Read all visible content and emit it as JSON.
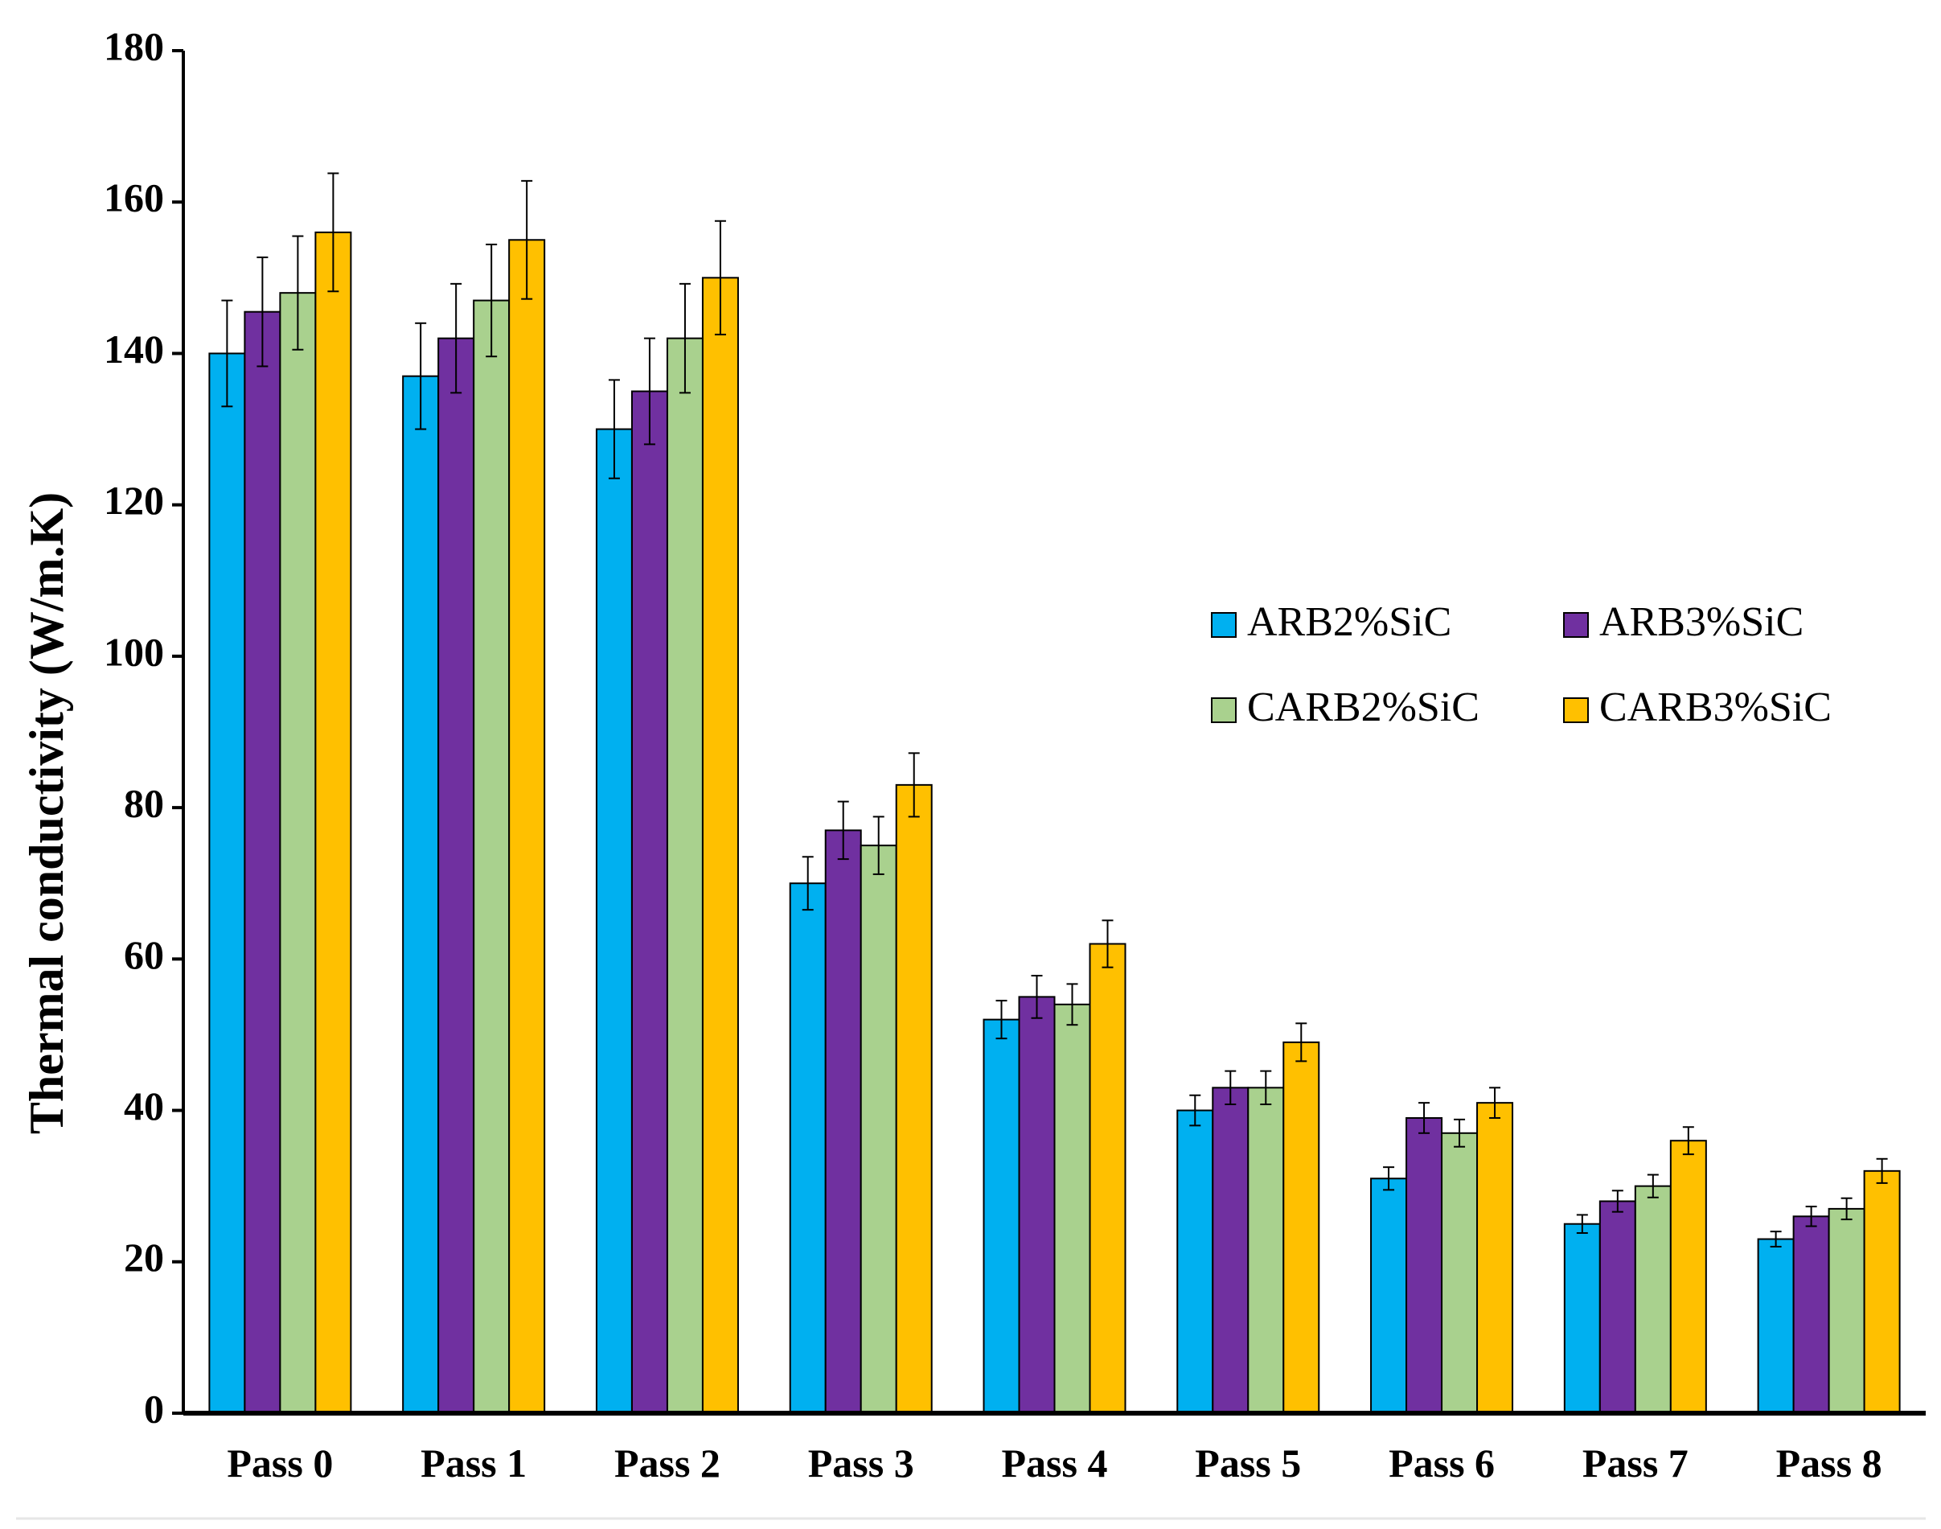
{
  "chart_data": {
    "type": "bar",
    "title": "",
    "xlabel": "",
    "ylabel": "Thermal conductivity (W/m.K)",
    "ylim": [
      0,
      180
    ],
    "yticks": [
      0,
      20,
      40,
      60,
      80,
      100,
      120,
      140,
      160,
      180
    ],
    "grid": false,
    "legend_position": "center-right",
    "categories": [
      "Pass 0",
      "Pass 1",
      "Pass 2",
      "Pass 3",
      "Pass 4",
      "Pass 5",
      "Pass 6",
      "Pass 7",
      "Pass 8"
    ],
    "series": [
      {
        "name": "ARB2%SiC",
        "color": "#00B0F0",
        "values": [
          140,
          137,
          130,
          70,
          52,
          40,
          31,
          25,
          23
        ],
        "errors": [
          7,
          7,
          6.5,
          3.5,
          2.5,
          2,
          1.5,
          1.2,
          1
        ]
      },
      {
        "name": "ARB3%SiC",
        "color": "#7030A0",
        "values": [
          145.5,
          142,
          135,
          77,
          55,
          43,
          39,
          28,
          26
        ],
        "errors": [
          7.2,
          7.2,
          7,
          3.8,
          2.8,
          2.2,
          2,
          1.4,
          1.3
        ]
      },
      {
        "name": "CARB2%SiC",
        "color": "#A9D18E",
        "values": [
          148,
          147,
          142,
          75,
          54,
          43,
          37,
          30,
          27
        ],
        "errors": [
          7.5,
          7.4,
          7.2,
          3.8,
          2.7,
          2.2,
          1.8,
          1.5,
          1.4
        ]
      },
      {
        "name": "CARB3%SiC",
        "color": "#FFC000",
        "values": [
          156,
          155,
          150,
          83,
          62,
          49,
          41,
          36,
          32
        ],
        "errors": [
          7.8,
          7.8,
          7.5,
          4.2,
          3.1,
          2.5,
          2,
          1.8,
          1.6
        ]
      }
    ]
  }
}
